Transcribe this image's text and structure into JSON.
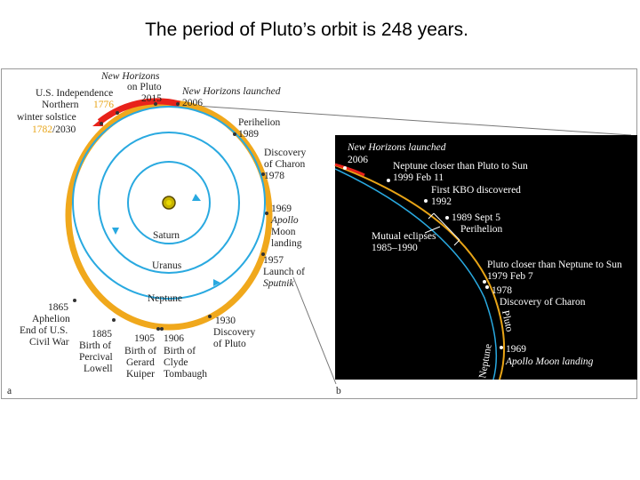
{
  "title": "The period of Pluto’s orbit is 248 years.",
  "colors": {
    "pluto_orbit": "#f0a81c",
    "neptune_orbit": "#29a9e0",
    "new_horizons_arc": "#e8221a",
    "right_bg": "#000000",
    "sun": "#c8b400"
  },
  "panel_a": {
    "label": "a",
    "planets": {
      "saturn": "Saturn",
      "uranus": "Uranus",
      "neptune": "Neptune"
    },
    "events": {
      "nh_pluto": [
        "New Horizons",
        "on Pluto",
        "2015"
      ],
      "nh_launch": [
        "New Horizons launched",
        "2006"
      ],
      "independence": [
        "U.S. Independence",
        "1776"
      ],
      "solstice": [
        "Northern",
        "winter solstice"
      ],
      "solstice_year_orange": "1782",
      "solstice_year_black": "/2030",
      "perihelion": [
        "Perihelion",
        "1989"
      ],
      "charon": [
        "Discovery",
        "of Charon",
        "1978"
      ],
      "apollo": [
        "1969",
        "Apollo",
        "Moon",
        "landing"
      ],
      "sputnik": [
        "1957",
        "Launch of",
        "Sputnik"
      ],
      "aphelion": [
        "1865",
        "Aphelion",
        "End of U.S.",
        "Civil War"
      ],
      "lowell": [
        "1885",
        "Birth of",
        "Percival",
        "Lowell"
      ],
      "kuiper": [
        "1905",
        "Birth of",
        "Gerard",
        "Kuiper"
      ],
      "tombaugh": [
        "1906",
        "Birth of",
        "Clyde",
        "Tombaugh"
      ],
      "discovery_pluto": [
        "1930",
        "Discovery",
        "of Pluto"
      ]
    }
  },
  "panel_b": {
    "label": "b",
    "events": {
      "nh_launch": [
        "New Horizons launched",
        "2006"
      ],
      "neptune_closer": [
        "Neptune closer than Pluto to Sun",
        "1999 Feb 11"
      ],
      "kbo": [
        "First KBO discovered",
        "1992"
      ],
      "perihelion": [
        "1989 Sept 5",
        "Perihelion"
      ],
      "eclipses": [
        "Mutual eclipses",
        "1985–1990"
      ],
      "pluto_closer": [
        "Pluto closer than Neptune to Sun",
        "1979 Feb 7"
      ],
      "charon": [
        "1978",
        "Discovery of Charon"
      ],
      "apollo": [
        "1969",
        "Apollo Moon landing"
      ]
    },
    "orbit_labels": {
      "pluto": "Pluto",
      "neptune": "Neptune"
    }
  }
}
